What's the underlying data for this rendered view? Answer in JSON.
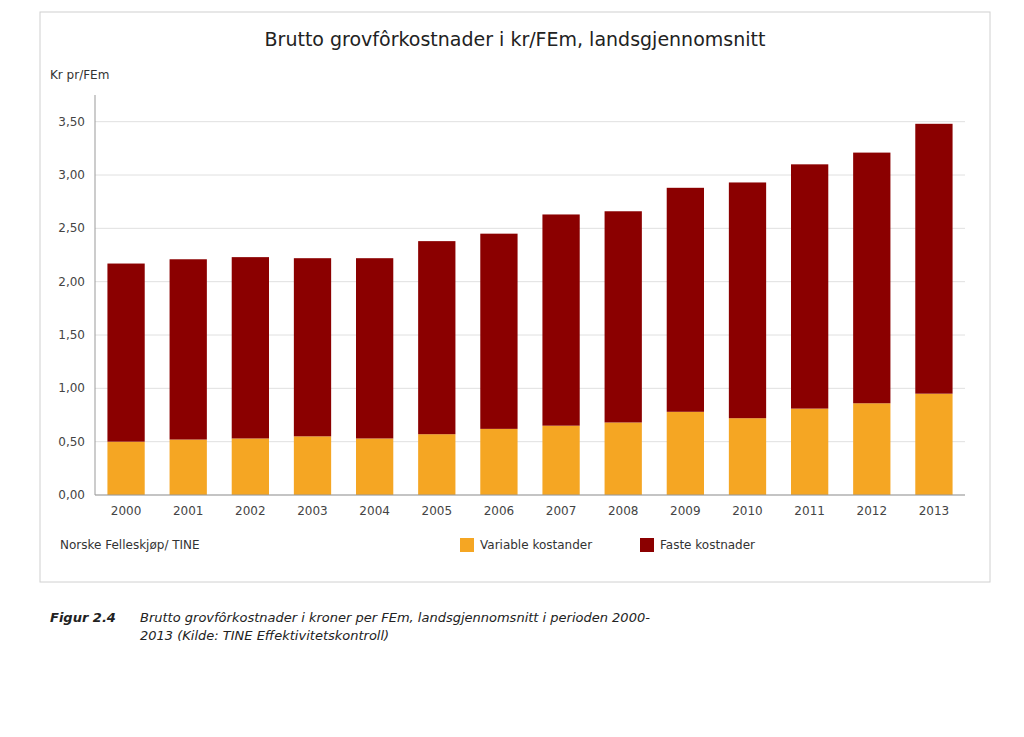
{
  "chart_data": {
    "type": "bar",
    "stacked": true,
    "title": "Brutto grovfôrkostnader i kr/FEm, landsgjennomsnitt",
    "ylabel": "Kr pr/FEm",
    "categories": [
      "2000",
      "2001",
      "2002",
      "2003",
      "2004",
      "2005",
      "2006",
      "2007",
      "2008",
      "2009",
      "2010",
      "2011",
      "2012",
      "2013"
    ],
    "series": [
      {
        "name": "Variable kostander",
        "color": "#F5A623",
        "values": [
          0.5,
          0.52,
          0.53,
          0.55,
          0.53,
          0.57,
          0.62,
          0.65,
          0.68,
          0.78,
          0.72,
          0.81,
          0.86,
          0.95
        ]
      },
      {
        "name": "Faste kostnader",
        "color": "#8B0000",
        "values": [
          1.67,
          1.69,
          1.7,
          1.67,
          1.69,
          1.81,
          1.83,
          1.98,
          1.98,
          2.1,
          2.21,
          2.29,
          2.35,
          2.53
        ]
      }
    ],
    "ylim": [
      0,
      3.75
    ],
    "yticks": [
      {
        "value": 0.0,
        "label": "0,00"
      },
      {
        "value": 0.5,
        "label": "0,50"
      },
      {
        "value": 1.0,
        "label": "1,00"
      },
      {
        "value": 1.5,
        "label": "1,50"
      },
      {
        "value": 2.0,
        "label": "2,00"
      },
      {
        "value": 2.5,
        "label": "2,50"
      },
      {
        "value": 3.0,
        "label": "3,00"
      },
      {
        "value": 3.5,
        "label": "3,50"
      }
    ],
    "grid": true,
    "legend": "bottom",
    "annotations": [
      "Norske Felleskjøp/ TINE",
      "Figur 2.4",
      "Brutto grovfôrkostnader i kroner per FEm, landsgjennomsnitt i perioden 2000-\n2013 (Kilde: TINE Effektivitetskontroll)"
    ]
  }
}
